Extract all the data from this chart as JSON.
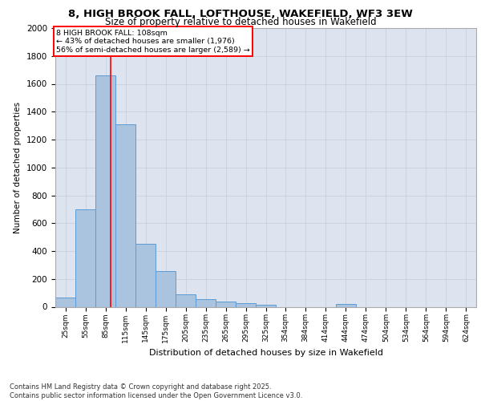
{
  "title_line1": "8, HIGH BROOK FALL, LOFTHOUSE, WAKEFIELD, WF3 3EW",
  "title_line2": "Size of property relative to detached houses in Wakefield",
  "xlabel": "Distribution of detached houses by size in Wakefield",
  "ylabel": "Number of detached properties",
  "footnote1": "Contains HM Land Registry data © Crown copyright and database right 2025.",
  "footnote2": "Contains public sector information licensed under the Open Government Licence v3.0.",
  "annotation_line1": "8 HIGH BROOK FALL: 108sqm",
  "annotation_line2": "← 43% of detached houses are smaller (1,976)",
  "annotation_line3": "56% of semi-detached houses are larger (2,589) →",
  "property_size_sqm": 108,
  "bin_starts": [
    25,
    55,
    85,
    115,
    145,
    175,
    205,
    235,
    265,
    295,
    325,
    354,
    384,
    414,
    444,
    474,
    504,
    534,
    564,
    594,
    624
  ],
  "bin_width": 30,
  "values": [
    65,
    700,
    1660,
    1310,
    450,
    255,
    90,
    55,
    35,
    25,
    15,
    0,
    0,
    0,
    20,
    0,
    0,
    0,
    0,
    0,
    0
  ],
  "bar_color": "#aac4e0",
  "bar_edge_color": "#5b9bd5",
  "grid_color": "#c8d0dc",
  "bg_color": "#dde4f0",
  "vline_color": "red",
  "ylim": [
    0,
    2000
  ],
  "yticks": [
    0,
    200,
    400,
    600,
    800,
    1000,
    1200,
    1400,
    1600,
    1800,
    2000
  ]
}
